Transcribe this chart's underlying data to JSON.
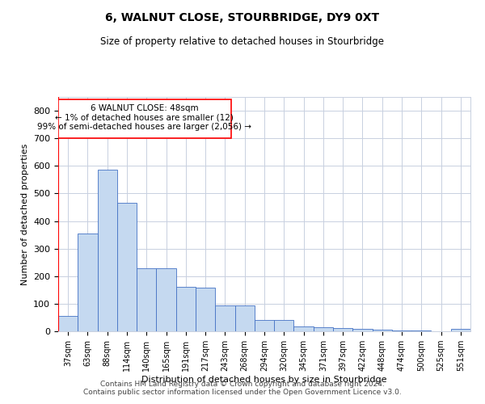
{
  "title": "6, WALNUT CLOSE, STOURBRIDGE, DY9 0XT",
  "subtitle": "Size of property relative to detached houses in Stourbridge",
  "xlabel": "Distribution of detached houses by size in Stourbridge",
  "ylabel": "Number of detached properties",
  "categories": [
    "37sqm",
    "63sqm",
    "88sqm",
    "114sqm",
    "140sqm",
    "165sqm",
    "191sqm",
    "217sqm",
    "243sqm",
    "268sqm",
    "294sqm",
    "320sqm",
    "345sqm",
    "371sqm",
    "397sqm",
    "422sqm",
    "448sqm",
    "474sqm",
    "500sqm",
    "525sqm",
    "551sqm"
  ],
  "values": [
    55,
    355,
    585,
    465,
    230,
    228,
    160,
    158,
    95,
    93,
    42,
    40,
    18,
    16,
    12,
    10,
    5,
    4,
    2,
    1,
    8
  ],
  "bar_color": "#c5d9f0",
  "bar_edge_color": "#4472c4",
  "annotation_text_line1": "6 WALNUT CLOSE: 48sqm",
  "annotation_text_line2": "← 1% of detached houses are smaller (12)",
  "annotation_text_line3": "99% of semi-detached houses are larger (2,056) →",
  "ylim": [
    0,
    850
  ],
  "yticks": [
    0,
    100,
    200,
    300,
    400,
    500,
    600,
    700,
    800
  ],
  "footer_line1": "Contains HM Land Registry data © Crown copyright and database right 2024.",
  "footer_line2": "Contains public sector information licensed under the Open Government Licence v3.0.",
  "background_color": "#ffffff",
  "grid_color": "#c8d0e0"
}
